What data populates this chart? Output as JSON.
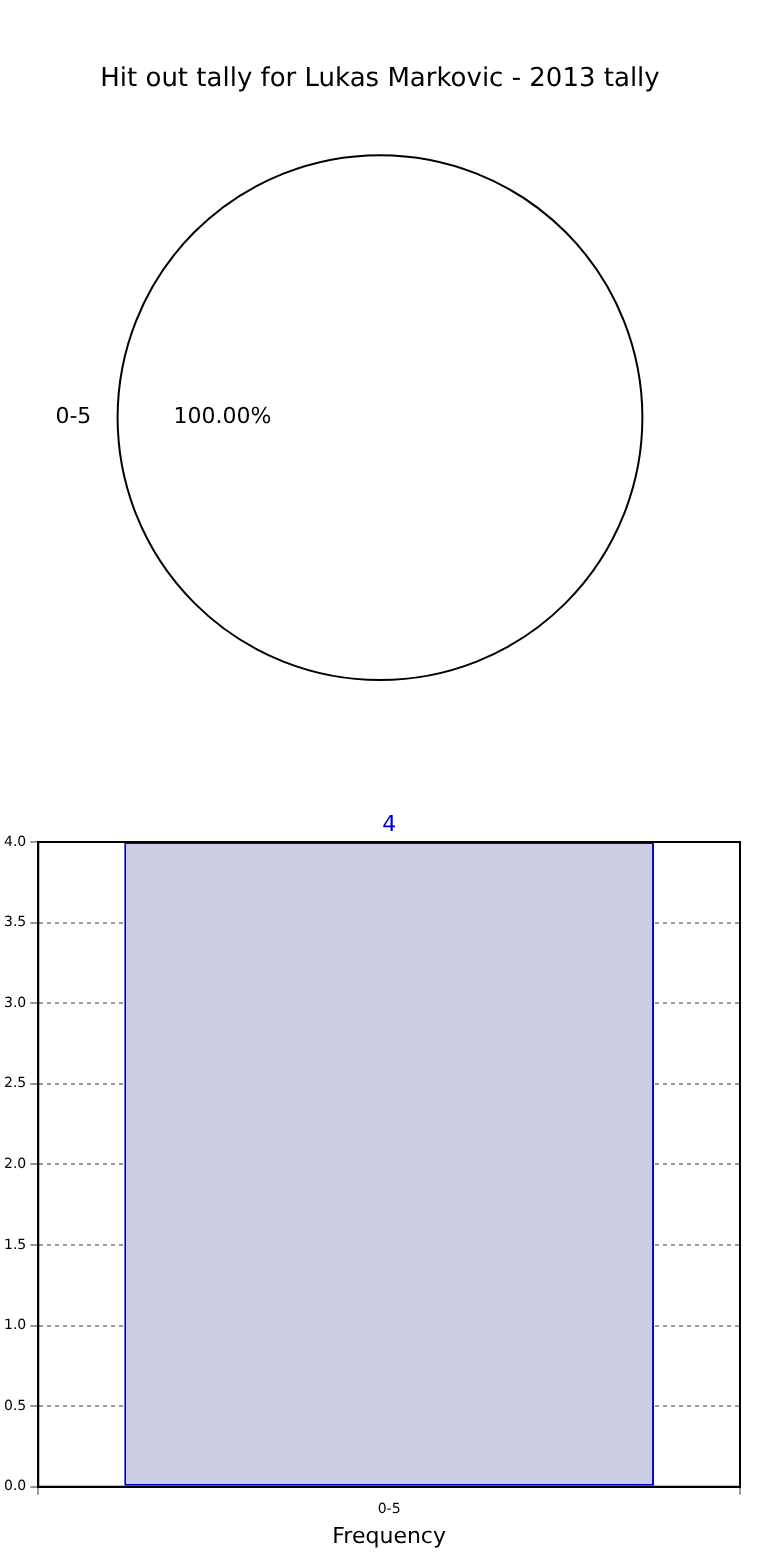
{
  "chart_data": [
    {
      "type": "pie",
      "title": "Hit out tally for Lukas Markovic - 2013 tally",
      "categories": [
        "0-5"
      ],
      "values": [
        100
      ],
      "colors": [
        "#ffffff"
      ],
      "value_labels": [
        "100.00%"
      ]
    },
    {
      "type": "bar",
      "categories": [
        "0-5"
      ],
      "values": [
        4
      ],
      "color": "#ccccE5",
      "xlabel": "Frequency",
      "ylim": [
        0,
        4
      ],
      "yticks": [
        {
          "value": 0,
          "label": "0.0"
        },
        {
          "value": 0.5,
          "label": "0.5"
        },
        {
          "value": 1,
          "label": "1.0"
        },
        {
          "value": 1.5,
          "label": "1.5"
        },
        {
          "value": 2,
          "label": "2.0"
        },
        {
          "value": 2.5,
          "label": "2.5"
        },
        {
          "value": 3,
          "label": "3.0"
        },
        {
          "value": 3.5,
          "label": "3.5"
        },
        {
          "value": 4,
          "label": "4.0"
        }
      ],
      "grid": true,
      "data_labels": true
    }
  ]
}
